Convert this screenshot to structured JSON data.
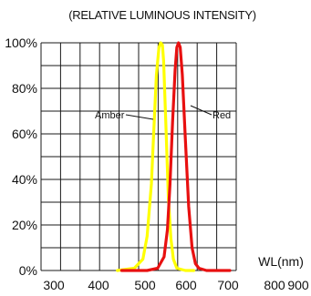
{
  "chart_data": {
    "type": "line",
    "title": "(RELATIVE LUMINOUS INTENSITY)",
    "xlabel": "WL(nm)",
    "ylabel": "",
    "xlim": [
      300,
      900
    ],
    "ylim": [
      0,
      100
    ],
    "x_ticks": [
      "300",
      "400",
      "500",
      "600",
      "700",
      "800",
      "900"
    ],
    "y_ticks": [
      "0%",
      "20%",
      "40%",
      "60%",
      "80%",
      "100%"
    ],
    "grid": true,
    "series": [
      {
        "name": "Amber",
        "color": "#ffff00",
        "points": [
          [
            480,
            0
          ],
          [
            520,
            1
          ],
          [
            540,
            5
          ],
          [
            550,
            15
          ],
          [
            560,
            38
          ],
          [
            566,
            62
          ],
          [
            572,
            86
          ],
          [
            578,
            98
          ],
          [
            582,
            100
          ],
          [
            586,
            99
          ],
          [
            589,
            92
          ],
          [
            594,
            65
          ],
          [
            600,
            32
          ],
          [
            606,
            14
          ],
          [
            612,
            5
          ],
          [
            620,
            1
          ],
          [
            640,
            0
          ],
          [
            660,
            0
          ]
        ]
      },
      {
        "name": "Red",
        "color": "#e81010",
        "points": [
          [
            490,
            0
          ],
          [
            550,
            0
          ],
          [
            575,
            1
          ],
          [
            590,
            6
          ],
          [
            598,
            18
          ],
          [
            604,
            38
          ],
          [
            610,
            65
          ],
          [
            616,
            88
          ],
          [
            620,
            98
          ],
          [
            624,
            100
          ],
          [
            628,
            98
          ],
          [
            633,
            86
          ],
          [
            640,
            58
          ],
          [
            648,
            28
          ],
          [
            656,
            10
          ],
          [
            664,
            3
          ],
          [
            672,
            1
          ],
          [
            690,
            0
          ],
          [
            745,
            0
          ]
        ]
      }
    ]
  }
}
